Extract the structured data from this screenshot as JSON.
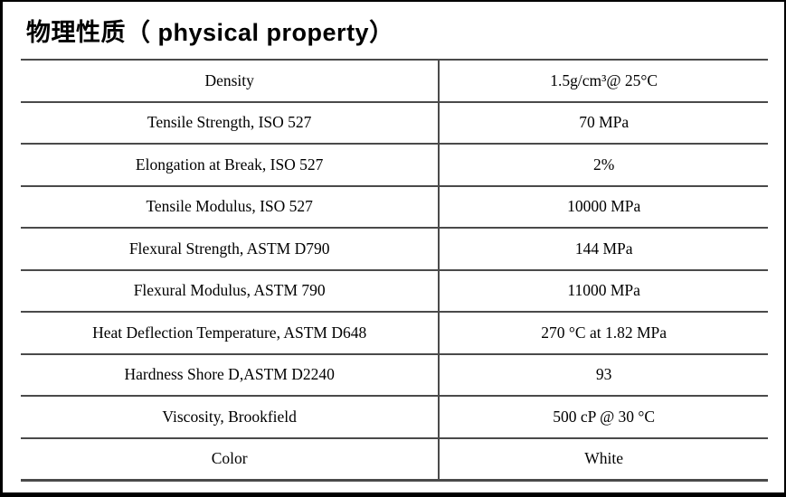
{
  "title": "物理性质（ physical property）",
  "rows": [
    {
      "property": "Density",
      "value": "1.5g/cm³@ 25°C"
    },
    {
      "property": "Tensile Strength, ISO 527",
      "value": "70 MPa"
    },
    {
      "property": "Elongation at Break, ISO 527",
      "value": "2%"
    },
    {
      "property": "Tensile Modulus, ISO 527",
      "value": "10000 MPa"
    },
    {
      "property": "Flexural Strength, ASTM D790",
      "value": "144 MPa"
    },
    {
      "property": "Flexural Modulus, ASTM 790",
      "value": "11000 MPa"
    },
    {
      "property": "Heat Deflection Temperature, ASTM D648",
      "value": "270 °C at 1.82 MPa"
    },
    {
      "property": "Hardness Shore D,ASTM D2240",
      "value": "93"
    },
    {
      "property": "Viscosity, Brookfield",
      "value": "500 cP @ 30 °C"
    },
    {
      "property": "Color",
      "value": "White"
    }
  ],
  "colors": {
    "grid": "#4a4a4a",
    "frame": "#000000",
    "text": "#000000",
    "background": "#ffffff"
  }
}
